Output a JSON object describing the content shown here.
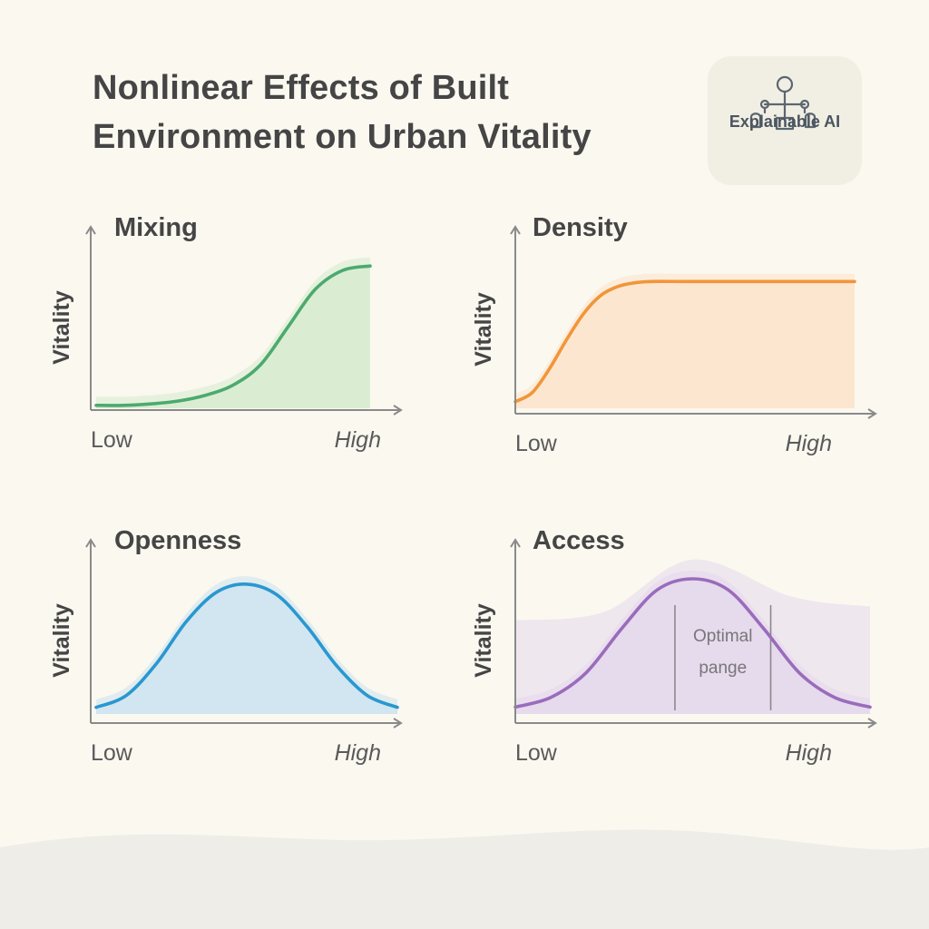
{
  "title_lines": [
    "Nonlinear Effects of Built",
    "Environment on Urban Vitality"
  ],
  "badge": {
    "label": "Explainable AI",
    "icon": "network-tree-icon"
  },
  "chart_data": [
    {
      "type": "line",
      "title": "Mixing",
      "ylabel": "Vitality",
      "xlabel_low": "Low",
      "xlabel_high": "High",
      "shape": "accelerating-then-saturating",
      "x": [
        0,
        0.1,
        0.2,
        0.3,
        0.4,
        0.5,
        0.6,
        0.7,
        0.8,
        0.9,
        1.0
      ],
      "y": [
        0.02,
        0.02,
        0.03,
        0.05,
        0.09,
        0.16,
        0.3,
        0.56,
        0.82,
        0.95,
        0.98
      ],
      "color": "#4caa6e",
      "fill": "#d8ecd0"
    },
    {
      "type": "line",
      "title": "Density",
      "ylabel": "Vitality",
      "xlabel_low": "Low",
      "xlabel_high": "High",
      "shape": "rise-then-plateau",
      "x": [
        0,
        0.05,
        0.1,
        0.15,
        0.2,
        0.25,
        0.3,
        0.35,
        0.4,
        0.5,
        0.6,
        0.8,
        1.0
      ],
      "y": [
        0.05,
        0.12,
        0.3,
        0.52,
        0.72,
        0.86,
        0.93,
        0.96,
        0.97,
        0.97,
        0.97,
        0.97,
        0.97
      ],
      "color": "#f0963a",
      "fill": "#fde5cd"
    },
    {
      "type": "line",
      "title": "Openness",
      "ylabel": "Vitality",
      "xlabel_low": "Low",
      "xlabel_high": "High",
      "shape": "inverted-u",
      "x": [
        0,
        0.1,
        0.2,
        0.3,
        0.4,
        0.5,
        0.6,
        0.7,
        0.8,
        0.9,
        1.0
      ],
      "y": [
        0.05,
        0.14,
        0.38,
        0.7,
        0.92,
        0.98,
        0.9,
        0.66,
        0.36,
        0.14,
        0.05
      ],
      "color": "#2a97d0",
      "fill": "#cfe5ef"
    },
    {
      "type": "line",
      "title": "Access",
      "ylabel": "Vitality",
      "xlabel_low": "Low",
      "xlabel_high": "High",
      "shape": "inverted-u",
      "x": [
        0,
        0.1,
        0.2,
        0.3,
        0.4,
        0.5,
        0.6,
        0.7,
        0.8,
        0.9,
        1.0
      ],
      "y": [
        0.05,
        0.12,
        0.3,
        0.62,
        0.9,
        0.98,
        0.9,
        0.62,
        0.3,
        0.12,
        0.05
      ],
      "color": "#9a6cbc",
      "fill": "#e5d9ec",
      "annotation": {
        "lines": [
          "Optimal",
          "pange"
        ],
        "x_range": [
          0.45,
          0.72
        ]
      }
    }
  ],
  "colors": {
    "background": "#fbf8f0",
    "axis": "#8a8a8a",
    "wave": "#efede8"
  }
}
